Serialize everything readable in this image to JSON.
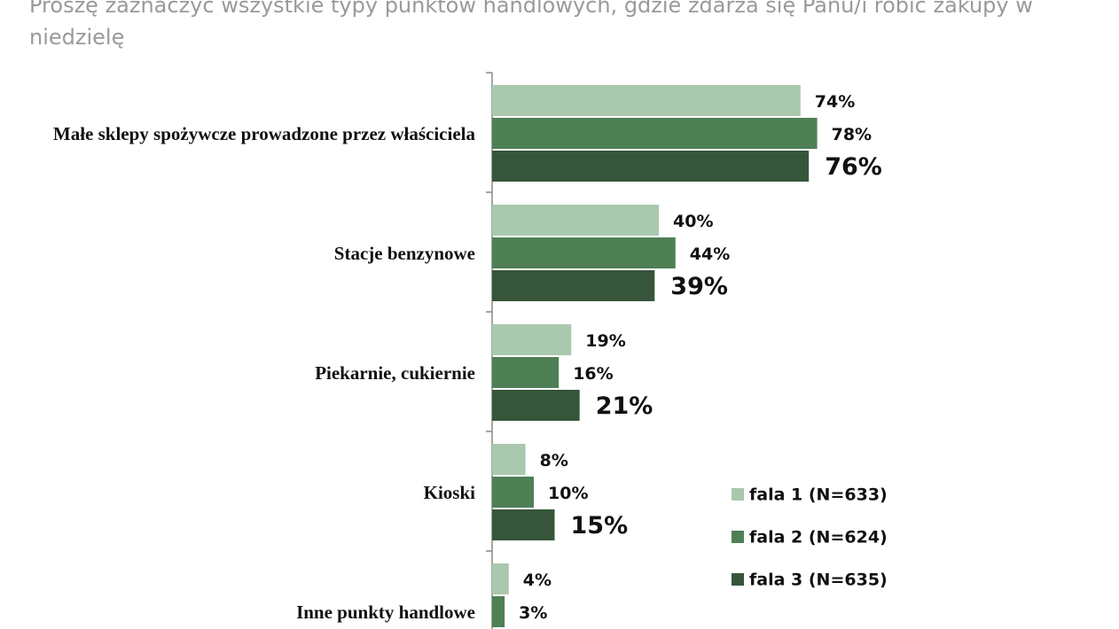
{
  "chart_data": {
    "type": "barh",
    "title": "Proszę zaznaczyć wszystkie typy punktów handlowych, gdzie zdarza się Panu/i robić zakupy w niedzielę",
    "categories": [
      "Małe sklepy spożywcze prowadzone przez właściciela",
      "Stacje benzynowe",
      "Piekarnie, cukiernie",
      "Kioski",
      "Inne punkty handlowe"
    ],
    "series": [
      {
        "name": "fala 1 (N=633)",
        "color": "#a9c8ad",
        "values": [
          74,
          40,
          19,
          8,
          4
        ],
        "value_labels": [
          "74%",
          "40%",
          "19%",
          "8%",
          "4%"
        ]
      },
      {
        "name": "fala 2 (N=624)",
        "color": "#4e7f55",
        "values": [
          78,
          44,
          16,
          10,
          3
        ],
        "value_labels": [
          "78%",
          "44%",
          "16%",
          "10%",
          "3%"
        ]
      },
      {
        "name": "fala 3 (N=635)",
        "color": "#36553a",
        "values": [
          76,
          39,
          21,
          15,
          null
        ],
        "value_labels": [
          "76%",
          "39%",
          "21%",
          "15%",
          null
        ]
      }
    ],
    "xlim": [
      0,
      100
    ],
    "legend": "right"
  }
}
